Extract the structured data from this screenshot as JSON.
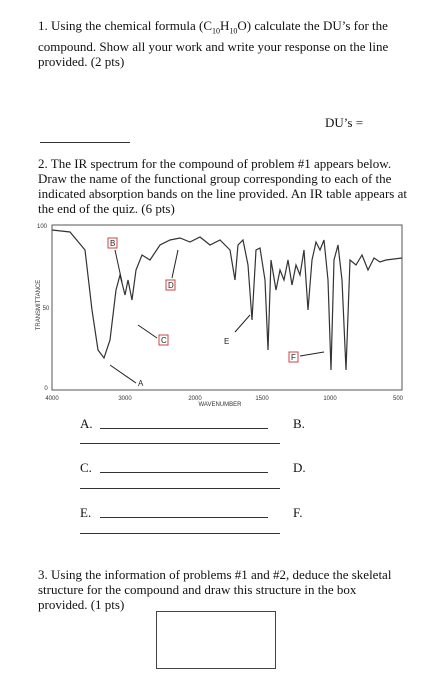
{
  "q1": {
    "text_a": "1. Using the chemical formula (C",
    "sub1": "10",
    "text_b": "H",
    "sub2": "10",
    "text_c": "O) calculate the DU’s for the compound.  Show all your work and write your response on the line provided.  (2 pts)",
    "answer_label": "DU’s ="
  },
  "q2": {
    "text": "2.  The IR spectrum for the compound of problem #1 appears below.  Draw the name of the functional group corresponding to each of the indicated absorption bands on the line provided.  An IR table appears at the end of the quiz.  (6 pts)",
    "spectrum": {
      "x_ticks": [
        "4000",
        "3000",
        "2000",
        "1500",
        "1000",
        "500"
      ],
      "x_label": "WAVENUMBER",
      "y_ticks": [
        "100",
        "50",
        "0"
      ],
      "y_label": "TRANSMITTANCE",
      "band_labels": [
        "A",
        "B",
        "C",
        "D",
        "E",
        "F"
      ]
    },
    "answers": [
      "A.",
      "B.",
      "C.",
      "D.",
      "E.",
      "F."
    ]
  },
  "q3": {
    "text": "3.  Using the information of problems #1 and #2, deduce the skeletal structure for the compound and draw this structure in the box provided.  (1 pts)"
  }
}
